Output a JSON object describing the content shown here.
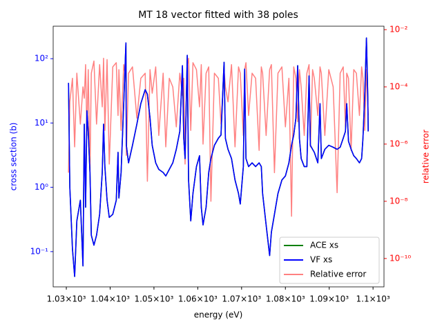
{
  "chart_data": {
    "type": "line",
    "title": "MT 18 vector fitted with 38 poles",
    "x_label": "energy (eV)",
    "y_label": "cross section (b)",
    "y2_label": "relative error",
    "log_y": true,
    "log_y2": true,
    "legend": "lower right",
    "xlim": [
      1027.0,
      1102.5
    ],
    "ylim": [
      0.0283,
      320
    ],
    "y2lim": [
      1.02e-11,
      0.0132
    ],
    "xticks": [
      {
        "value": 1030,
        "label": "1.03×10³"
      },
      {
        "value": 1040,
        "label": "1.04×10³"
      },
      {
        "value": 1050,
        "label": "1.05×10³"
      },
      {
        "value": 1060,
        "label": "1.06×10³"
      },
      {
        "value": 1070,
        "label": "1.07×10³"
      },
      {
        "value": 1080,
        "label": "1.08×10³"
      },
      {
        "value": 1090,
        "label": "1.09×10³"
      },
      {
        "value": 1100,
        "label": "1.1×10³"
      }
    ],
    "yticks": [
      {
        "value": 0.1,
        "label": "10⁻¹"
      },
      {
        "value": 1,
        "label": "10⁰"
      },
      {
        "value": 10,
        "label": "10¹"
      },
      {
        "value": 100,
        "label": "10²"
      }
    ],
    "y2ticks": [
      {
        "value": 1e-10,
        "label": "10⁻¹⁰"
      },
      {
        "value": 1e-08,
        "label": "10⁻⁸"
      },
      {
        "value": 1e-06,
        "label": "10⁻⁶"
      },
      {
        "value": 0.0001,
        "label": "10⁻⁴"
      },
      {
        "value": 0.01,
        "label": "10⁻²"
      }
    ],
    "x": [
      1030.5,
      1030.8,
      1031.4,
      1031.9,
      1032.4,
      1033.2,
      1033.8,
      1034.1,
      1034.4,
      1034.7,
      1035.0,
      1035.4,
      1035.7,
      1036.3,
      1036.9,
      1037.6,
      1038.2,
      1038.5,
      1038.8,
      1039.3,
      1039.8,
      1040.6,
      1041.4,
      1041.8,
      1042.0,
      1042.5,
      1043.1,
      1043.6,
      1043.7,
      1044.2,
      1045.1,
      1046.1,
      1047.0,
      1048.0,
      1048.5,
      1049.1,
      1049.6,
      1050.4,
      1051.1,
      1052.1,
      1052.7,
      1053.5,
      1054.3,
      1055.1,
      1055.9,
      1056.5,
      1056.8,
      1057.1,
      1057.6,
      1057.9,
      1058.4,
      1058.9,
      1059.7,
      1060.4,
      1060.8,
      1061.2,
      1061.9,
      1062.5,
      1063.0,
      1063.8,
      1064.7,
      1065.3,
      1066.0,
      1066.3,
      1066.9,
      1067.7,
      1068.5,
      1069.3,
      1069.7,
      1070.4,
      1070.7,
      1071.0,
      1071.6,
      1072.4,
      1073.2,
      1074.0,
      1074.5,
      1074.8,
      1075.6,
      1076.4,
      1076.8,
      1077.5,
      1078.3,
      1079.2,
      1080.0,
      1080.8,
      1081.4,
      1081.9,
      1082.4,
      1082.8,
      1083.2,
      1083.6,
      1084.3,
      1084.9,
      1085.4,
      1085.7,
      1086.2,
      1086.6,
      1087.4,
      1087.9,
      1088.2,
      1089.0,
      1089.9,
      1090.9,
      1091.8,
      1092.5,
      1093.2,
      1093.7,
      1094.0,
      1094.4,
      1095.0,
      1095.6,
      1096.2,
      1096.9,
      1097.4,
      1097.7,
      1098.1,
      1098.5,
      1098.8,
      1098.9
    ],
    "series": [
      {
        "name": "ACE xs",
        "color": "#008000",
        "values": [
          42,
          1.0,
          0.11,
          0.041,
          0.3,
          0.63,
          0.06,
          9.6,
          0.49,
          15.5,
          7.4,
          1.7,
          0.18,
          0.126,
          0.18,
          0.38,
          1.7,
          9.6,
          2.1,
          0.63,
          0.34,
          0.38,
          0.63,
          3.5,
          0.68,
          1.7,
          20,
          176,
          4.5,
          2.4,
          4.5,
          9.6,
          20,
          33,
          28,
          12,
          4.5,
          2.4,
          1.9,
          1.7,
          1.5,
          1.9,
          2.4,
          3.9,
          7.4,
          78,
          5.8,
          2.8,
          113,
          1.3,
          0.3,
          0.8,
          2.1,
          3.1,
          0.49,
          0.26,
          0.49,
          1.7,
          2.8,
          4.5,
          5.8,
          6.5,
          88,
          5.8,
          3.9,
          2.8,
          1.3,
          0.8,
          0.55,
          2.1,
          69,
          2.8,
          2.1,
          2.4,
          2.1,
          2.4,
          2.1,
          0.8,
          0.26,
          0.087,
          0.2,
          0.38,
          0.8,
          1.3,
          1.5,
          2.4,
          4.5,
          6.5,
          12,
          78,
          5.8,
          2.8,
          2.1,
          2.1,
          54,
          4.5,
          3.9,
          3.5,
          2.4,
          20,
          2.8,
          3.9,
          4.5,
          4.2,
          3.9,
          4.2,
          5.8,
          7.4,
          20,
          5.2,
          3.9,
          3.1,
          2.8,
          2.4,
          2.8,
          5.8,
          26,
          210,
          26,
          7.4
        ]
      },
      {
        "name": "VF xs",
        "color": "#0000ff",
        "values": [
          42,
          1.0,
          0.11,
          0.041,
          0.3,
          0.63,
          0.06,
          9.6,
          0.49,
          15.5,
          7.4,
          1.7,
          0.18,
          0.126,
          0.18,
          0.38,
          1.7,
          9.6,
          2.1,
          0.63,
          0.34,
          0.38,
          0.63,
          3.5,
          0.68,
          1.7,
          20,
          176,
          4.5,
          2.4,
          4.5,
          9.6,
          20,
          33,
          28,
          12,
          4.5,
          2.4,
          1.9,
          1.7,
          1.5,
          1.9,
          2.4,
          3.9,
          7.4,
          78,
          5.8,
          2.8,
          113,
          1.3,
          0.3,
          0.8,
          2.1,
          3.1,
          0.49,
          0.26,
          0.49,
          1.7,
          2.8,
          4.5,
          5.8,
          6.5,
          88,
          5.8,
          3.9,
          2.8,
          1.3,
          0.8,
          0.55,
          2.1,
          69,
          2.8,
          2.1,
          2.4,
          2.1,
          2.4,
          2.1,
          0.8,
          0.26,
          0.087,
          0.2,
          0.38,
          0.8,
          1.3,
          1.5,
          2.4,
          4.5,
          6.5,
          12,
          78,
          5.8,
          2.8,
          2.1,
          2.1,
          54,
          4.5,
          3.9,
          3.5,
          2.4,
          20,
          2.8,
          3.9,
          4.5,
          4.2,
          3.9,
          4.2,
          5.8,
          7.4,
          20,
          5.2,
          3.9,
          3.1,
          2.8,
          2.4,
          2.8,
          5.8,
          26,
          210,
          26,
          7.4
        ]
      },
      {
        "name": "Relative error",
        "color": "#ff8080",
        "axis": "y2",
        "values": [
          1e-07,
          3e-05,
          0.0002,
          8e-07,
          0.0003,
          5e-06,
          0.0001,
          4e-05,
          0.0006,
          2e-06,
          0.0004,
          1e-07,
          0.0003,
          0.0008,
          5e-06,
          0.0006,
          2e-05,
          0.001,
          3e-06,
          0.0009,
          2e-07,
          0.0005,
          0.0007,
          1e-05,
          0.0004,
          3e-06,
          0.0006,
          0.0002,
          4e-07,
          0.0003,
          0.0005,
          8e-06,
          0.0002,
          0.0003,
          5e-08,
          0.0004,
          6e-05,
          0.0005,
          2e-06,
          0.0003,
          8e-07,
          0.0002,
          0.0001,
          4e-06,
          0.0003,
          5e-05,
          0.0002,
          2e-07,
          0.0006,
          0.001,
          3e-06,
          0.0007,
          0.0004,
          2e-05,
          0.0006,
          1e-06,
          0.0003,
          0.0005,
          1e-08,
          0.0003,
          0.0002,
          5e-06,
          0.0004,
          0.0001,
          3e-05,
          0.0006,
          8e-07,
          0.0005,
          0.0003,
          2e-06,
          0.0004,
          0.0007,
          1e-05,
          0.0003,
          0.0002,
          6e-07,
          0.0005,
          0.0003,
          2e-06,
          0.0004,
          0.0006,
          1e-07,
          0.0003,
          0.0005,
          4e-06,
          0.0002,
          3e-09,
          0.0005,
          0.0002,
          6e-06,
          0.0004,
          0.0001,
          2e-06,
          0.0003,
          0.0006,
          8e-07,
          0.0004,
          0.0002,
          1e-05,
          0.0005,
          0.0003,
          2e-06,
          0.0004,
          0.0001,
          2e-08,
          0.0003,
          0.0005,
          4e-06,
          0.0003,
          0.0002,
          6e-07,
          0.0004,
          0.0003,
          1e-05,
          0.0005,
          0.0002,
          3e-06,
          0.0004,
          3e-05,
          1e-05
        ]
      }
    ]
  }
}
